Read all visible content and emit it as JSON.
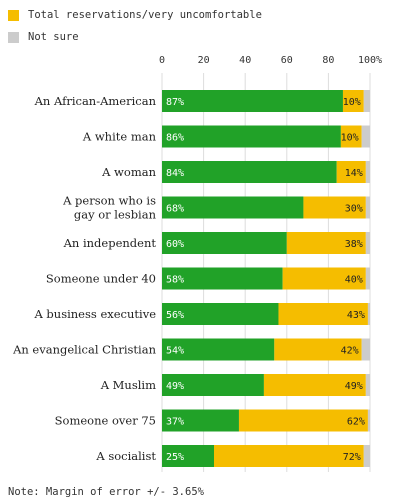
{
  "legend": [
    {
      "label": "Total reservations/very uncomfortable",
      "color": "#f5bd00"
    },
    {
      "label": "Not sure",
      "color": "#cccccc"
    }
  ],
  "note": "Note: Margin of error +/- 3.65%",
  "chart_data": {
    "type": "bar",
    "orientation": "horizontal",
    "stacked": true,
    "xlim": [
      0,
      100
    ],
    "x_ticks": [
      "0",
      "20",
      "40",
      "60",
      "80",
      "100%"
    ],
    "categories": [
      [
        "An African-American"
      ],
      [
        "A white man"
      ],
      [
        "A woman"
      ],
      [
        "A person who is",
        "gay or lesbian"
      ],
      [
        "An independent"
      ],
      [
        "Someone under 40"
      ],
      [
        "A business executive"
      ],
      [
        "An evangelical Christian"
      ],
      [
        "A Muslim"
      ],
      [
        "Someone over 75"
      ],
      [
        "A socialist"
      ]
    ],
    "series": [
      {
        "color": "#21a228",
        "values": [
          87,
          86,
          84,
          68,
          60,
          58,
          56,
          54,
          49,
          37,
          25
        ],
        "labels": [
          "87%",
          "86%",
          "84%",
          "68%",
          "60%",
          "58%",
          "56%",
          "54%",
          "49%",
          "37%",
          "25%"
        ]
      },
      {
        "name": "Total reservations/very uncomfortable",
        "color": "#f5bd00",
        "values": [
          10,
          10,
          14,
          30,
          38,
          40,
          43,
          42,
          49,
          62,
          72
        ],
        "labels": [
          "10%",
          "10%",
          "14%",
          "30%",
          "38%",
          "40%",
          "43%",
          "42%",
          "49%",
          "62%",
          "72%"
        ]
      },
      {
        "name": "Not sure",
        "color": "#cccccc",
        "values": [
          3,
          4,
          2,
          2,
          2,
          2,
          1,
          4,
          2,
          1,
          3
        ]
      }
    ],
    "grid": true
  }
}
